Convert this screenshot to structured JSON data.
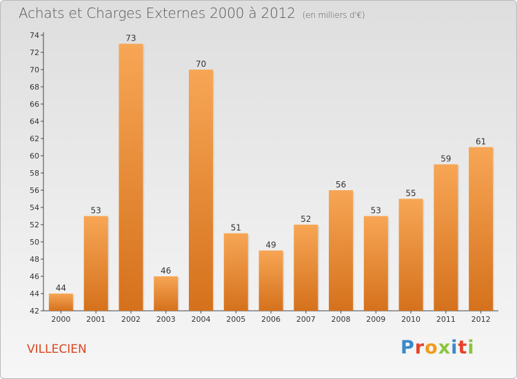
{
  "header": {
    "title": "Achats et Charges Externes 2000 à 2012",
    "unit": "(en milliers d'€)"
  },
  "footer": {
    "commune": "VILLECIEN",
    "logo": [
      "P",
      "r",
      "o",
      "x",
      "i",
      "t",
      "i"
    ]
  },
  "colors": {
    "bar_top": "#f7a655",
    "bar_bottom": "#d5711c",
    "commune": "#d9451f",
    "logo": [
      "#3a89c9",
      "#e7412b",
      "#f39a1b",
      "#8cc43f",
      "#3a89c9",
      "#e7412b",
      "#8cc43f"
    ]
  },
  "chart_data": {
    "type": "bar",
    "title": "Achats et Charges Externes 2000 à 2012",
    "subtitle": "(en milliers d'€)",
    "categories": [
      "2000",
      "2001",
      "2002",
      "2003",
      "2004",
      "2005",
      "2006",
      "2007",
      "2008",
      "2009",
      "2010",
      "2011",
      "2012"
    ],
    "values": [
      44,
      53,
      73,
      46,
      70,
      51,
      49,
      52,
      56,
      53,
      55,
      59,
      61
    ],
    "ylim": [
      42,
      74
    ],
    "yticks": [
      42,
      44,
      46,
      48,
      50,
      52,
      54,
      56,
      58,
      60,
      62,
      64,
      66,
      68,
      70,
      72,
      74
    ],
    "grid": false,
    "data_labels": true
  }
}
